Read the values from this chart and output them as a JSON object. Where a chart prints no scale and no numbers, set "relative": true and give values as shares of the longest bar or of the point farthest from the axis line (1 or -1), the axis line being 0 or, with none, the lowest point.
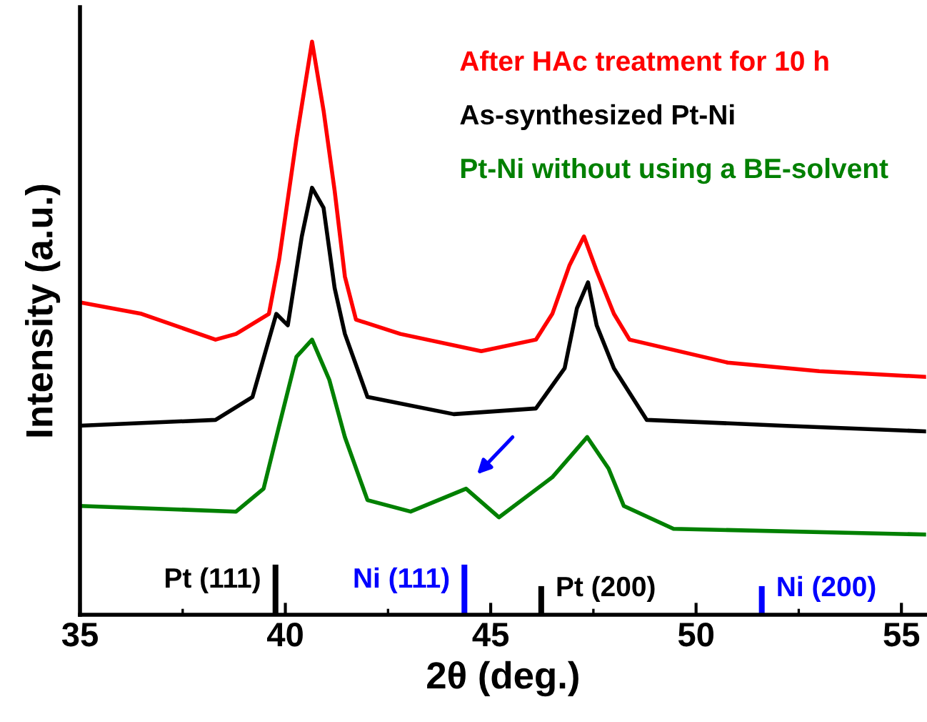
{
  "chart_data": {
    "type": "line",
    "xlabel": "2θ (deg.)",
    "ylabel": "Intensity (a.u.)",
    "relative": true,
    "xlim": [
      35,
      55.6
    ],
    "xticks": [
      35,
      40,
      45,
      50,
      55
    ],
    "tick_labels": "x",
    "legend": "top right",
    "grid": false,
    "series": [
      {
        "name": "After HAc treatment for 10 h",
        "color": "#ff0000",
        "x": [
          35,
          36.5,
          38.3,
          38.8,
          39.6,
          39.85,
          40.27,
          40.65,
          40.93,
          41.2,
          41.45,
          41.72,
          42.8,
          44.77,
          46.1,
          46.5,
          46.92,
          47.27,
          47.58,
          48.0,
          48.38,
          50.77,
          53,
          55.6
        ],
        "values": [
          0.545,
          0.525,
          0.48,
          0.49,
          0.525,
          0.62,
          0.83,
          1,
          0.88,
          0.74,
          0.59,
          0.515,
          0.49,
          0.46,
          0.48,
          0.525,
          0.61,
          0.66,
          0.6,
          0.525,
          0.48,
          0.44,
          0.425,
          0.415
        ]
      },
      {
        "name": "As-synthesized Pt-Ni",
        "color": "#000000",
        "x": [
          35,
          38.3,
          39.2,
          39.78,
          40.06,
          40.4,
          40.65,
          40.93,
          41.2,
          41.45,
          42.0,
          44.1,
          46.1,
          46.8,
          47.1,
          47.37,
          47.58,
          48.0,
          48.8,
          52.1,
          55.6
        ],
        "values": [
          0.33,
          0.34,
          0.38,
          0.525,
          0.505,
          0.66,
          0.745,
          0.71,
          0.57,
          0.49,
          0.38,
          0.35,
          0.36,
          0.43,
          0.535,
          0.58,
          0.505,
          0.43,
          0.34,
          0.33,
          0.32
        ]
      },
      {
        "name": "Pt-Ni without using a BE-solvent",
        "color": "#008000",
        "x": [
          35,
          38.8,
          39.47,
          39.85,
          40.27,
          40.65,
          41.07,
          41.45,
          42.0,
          43.05,
          44.4,
          45.2,
          46.5,
          47.35,
          47.87,
          48.24,
          49.45,
          55.6
        ],
        "values": [
          0.19,
          0.18,
          0.22,
          0.33,
          0.45,
          0.48,
          0.41,
          0.31,
          0.2,
          0.18,
          0.22,
          0.17,
          0.24,
          0.31,
          0.255,
          0.19,
          0.15,
          0.14
        ]
      },
      {
        "type": "bar",
        "color": "#000000",
        "x": [
          39.76,
          46.23
        ],
        "values": [
          0.0875,
          0.05
        ]
      },
      {
        "type": "bar",
        "color": "#0000ff",
        "x": [
          44.36,
          51.6
        ],
        "values": [
          0.0875,
          0.05
        ]
      }
    ],
    "annotations": [
      {
        "text": "Pt (111)",
        "x": 39.76,
        "y": 0.0875
      },
      {
        "text": "Ni (111)",
        "x": 44.36,
        "y": 0.0875
      },
      {
        "text": "Pt (200)",
        "x": 46.23,
        "y": 0.05
      },
      {
        "text": "Ni (200)",
        "x": 51.6,
        "y": 0.05
      }
    ]
  }
}
